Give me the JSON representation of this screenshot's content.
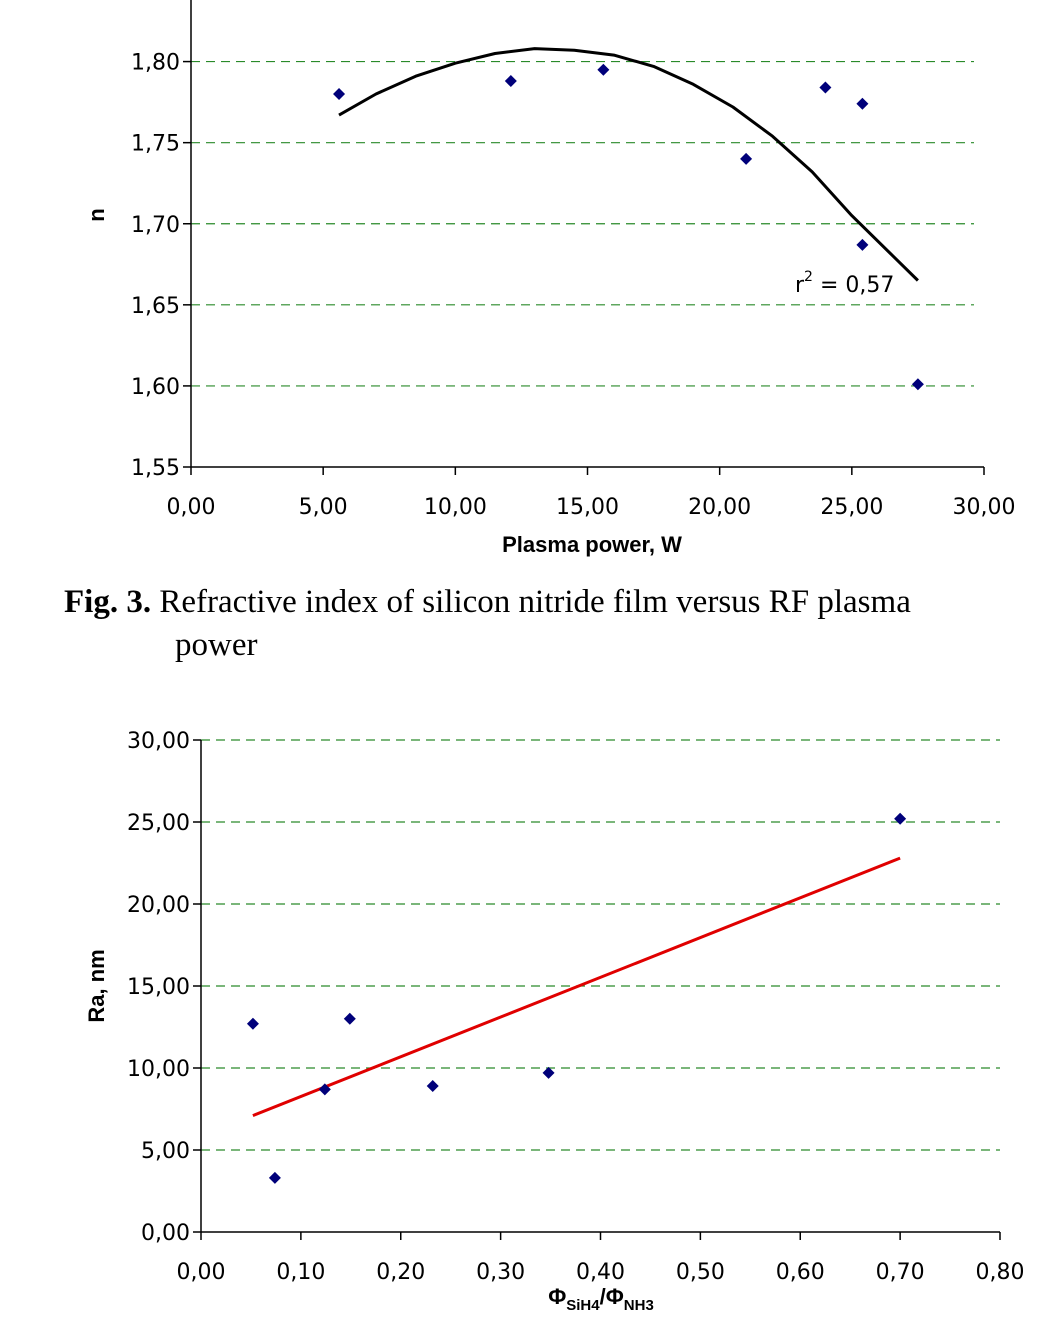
{
  "chart_data": [
    {
      "type": "scatter",
      "xlabel": "Plasma power, W",
      "ylabel": "n",
      "xlim": [
        0,
        30
      ],
      "ylim": [
        1.55,
        1.85
      ],
      "x_ticks": [
        "0,00",
        "5,00",
        "10,00",
        "15,00",
        "20,00",
        "25,00",
        "30,00"
      ],
      "y_ticks": [
        "1,55",
        "1,60",
        "1,65",
        "1,70",
        "1,75",
        "1,80"
      ],
      "grid": "horizontal dashed",
      "marker_color": "#00007a",
      "trend_color": "#000000",
      "points": [
        {
          "x": 5.6,
          "y": 1.78
        },
        {
          "x": 12.1,
          "y": 1.788
        },
        {
          "x": 15.6,
          "y": 1.795
        },
        {
          "x": 21.0,
          "y": 1.74
        },
        {
          "x": 24.0,
          "y": 1.784
        },
        {
          "x": 25.4,
          "y": 1.774
        },
        {
          "x": 25.4,
          "y": 1.687
        },
        {
          "x": 27.5,
          "y": 1.601
        }
      ],
      "trendline": {
        "kind": "polynomial",
        "x": [
          5.6,
          7.0,
          8.5,
          10.0,
          11.5,
          13.0,
          14.5,
          16.0,
          17.5,
          19.0,
          20.5,
          22.0,
          23.5,
          25.0,
          26.5,
          27.5
        ],
        "y": [
          1.767,
          1.78,
          1.791,
          1.799,
          1.805,
          1.808,
          1.807,
          1.804,
          1.797,
          1.786,
          1.772,
          1.754,
          1.732,
          1.705,
          1.681,
          1.665
        ]
      },
      "annotation": {
        "base": "r",
        "sup": "2",
        "rest": " = 0,57"
      },
      "caption": {
        "label": "Fig. 3.",
        "text": "Refractive index of silicon nitride film versus RF plasma",
        "text2": "power"
      }
    },
    {
      "type": "scatter",
      "xlabel": {
        "main": "Φ",
        "sub1": "SiH4",
        "slash": "/Φ",
        "sub2": "NH3"
      },
      "ylabel": "Ra, nm",
      "xlim": [
        0,
        0.8
      ],
      "ylim": [
        0,
        30
      ],
      "x_ticks": [
        "0,00",
        "0,10",
        "0,20",
        "0,30",
        "0,40",
        "0,50",
        "0,60",
        "0,70",
        "0,80"
      ],
      "y_ticks": [
        "0,00",
        "5,00",
        "10,00",
        "15,00",
        "20,00",
        "25,00",
        "30,00"
      ],
      "grid": "horizontal dashed",
      "marker_color": "#00007a",
      "trend_color": "#e00000",
      "points": [
        {
          "x": 0.052,
          "y": 12.7
        },
        {
          "x": 0.074,
          "y": 3.3
        },
        {
          "x": 0.124,
          "y": 8.7
        },
        {
          "x": 0.149,
          "y": 13.0
        },
        {
          "x": 0.232,
          "y": 8.9
        },
        {
          "x": 0.348,
          "y": 9.7
        },
        {
          "x": 0.7,
          "y": 25.2
        }
      ],
      "trendline": {
        "kind": "linear",
        "x": [
          0.052,
          0.7
        ],
        "y": [
          7.1,
          22.8
        ]
      }
    }
  ]
}
